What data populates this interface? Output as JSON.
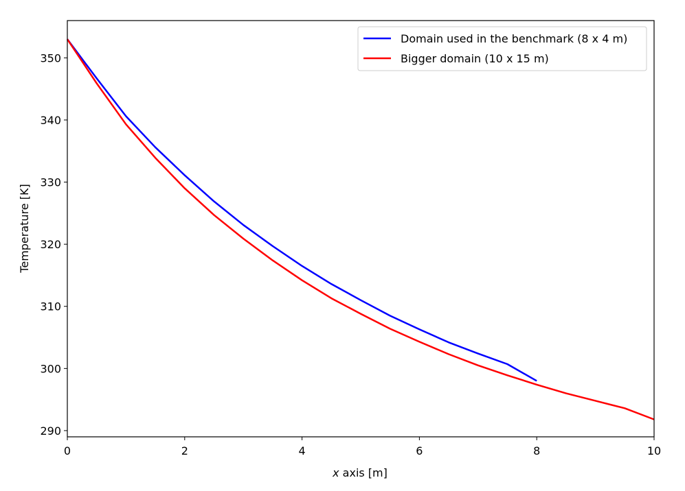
{
  "chart_data": {
    "type": "line",
    "xlabel_italic": "x",
    "xlabel_rest": " axis [m]",
    "ylabel": "Temperature [K]",
    "xlim": [
      0,
      10
    ],
    "ylim": [
      289,
      356
    ],
    "x_ticks": [
      0,
      2,
      4,
      6,
      8,
      10
    ],
    "y_ticks": [
      290,
      300,
      310,
      320,
      330,
      340,
      350
    ],
    "grid": false,
    "legend_position": "top-right",
    "series": [
      {
        "name": "Domain used in the benchmark (8 x 4 m)",
        "color": "#0000ff",
        "x": [
          0,
          0.5,
          1,
          1.5,
          2,
          2.5,
          3,
          3.5,
          4,
          4.5,
          5,
          5.5,
          6,
          6.5,
          7,
          7.5,
          8
        ],
        "y": [
          353,
          346.7,
          340.6,
          335.6,
          331.1,
          326.9,
          323.1,
          319.7,
          316.5,
          313.6,
          311.0,
          308.5,
          306.3,
          304.2,
          302.4,
          300.7,
          298
        ]
      },
      {
        "name": "Bigger domain (10 x 15 m)",
        "color": "#ff0000",
        "x": [
          0,
          0.5,
          1,
          1.5,
          2,
          2.5,
          3,
          3.5,
          4,
          4.5,
          5,
          5.5,
          6,
          6.5,
          7,
          7.5,
          8,
          8.5,
          9,
          9.5,
          10
        ],
        "y": [
          353,
          345.9,
          339.3,
          333.9,
          329.0,
          324.7,
          320.9,
          317.4,
          314.2,
          311.3,
          308.8,
          306.4,
          304.3,
          302.3,
          300.5,
          298.9,
          297.4,
          296.0,
          294.8,
          293.6,
          291.8
        ]
      }
    ]
  }
}
